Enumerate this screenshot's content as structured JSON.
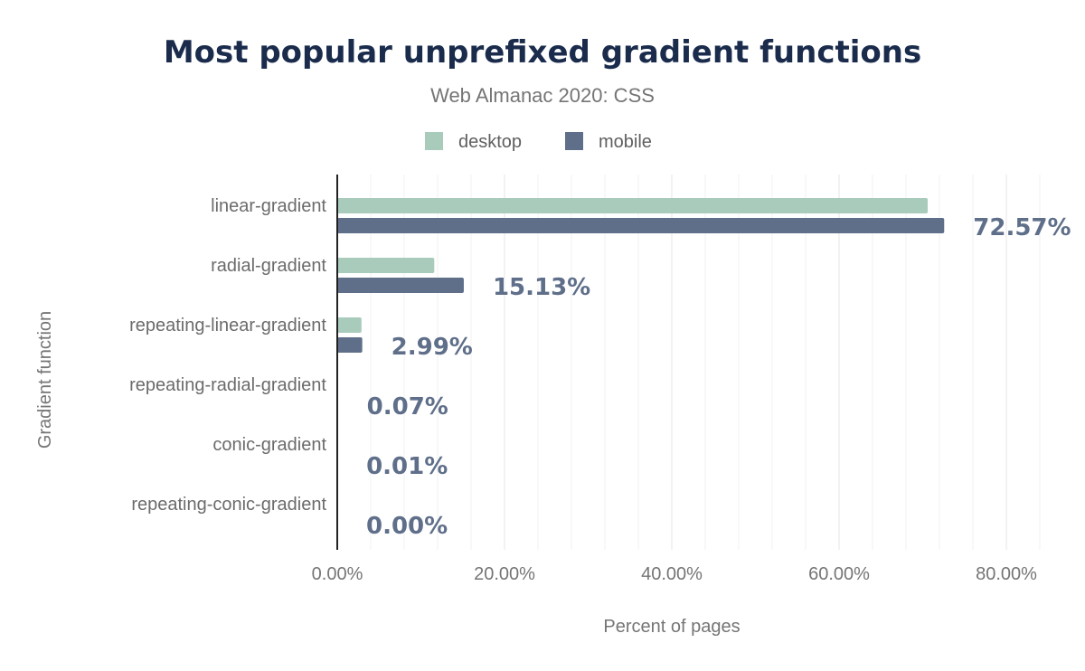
{
  "chart_data": {
    "type": "bar",
    "orientation": "horizontal",
    "title": "Most popular unprefixed gradient functions",
    "subtitle": "Web Almanac 2020: CSS",
    "xlabel": "Percent of pages",
    "ylabel": "Gradient function",
    "categories": [
      "linear-gradient",
      "radial-gradient",
      "repeating-linear-gradient",
      "repeating-radial-gradient",
      "conic-gradient",
      "repeating-conic-gradient"
    ],
    "series": [
      {
        "name": "desktop",
        "color": "#a8cbbc",
        "values": [
          70.6,
          11.6,
          2.9,
          0.06,
          0.01,
          0.0
        ]
      },
      {
        "name": "mobile",
        "color": "#5f6f8a",
        "values": [
          72.57,
          15.13,
          2.99,
          0.07,
          0.01,
          0.0
        ]
      }
    ],
    "data_labels": [
      "72.57%",
      "15.13%",
      "2.99%",
      "0.07%",
      "0.01%",
      "0.00%"
    ],
    "xlim": [
      0,
      85
    ],
    "xticks": [
      0,
      20,
      40,
      60,
      80
    ],
    "xtick_labels": [
      "0.00%",
      "20.00%",
      "40.00%",
      "60.00%",
      "80.00%"
    ],
    "grid": true,
    "legend_position": "top"
  }
}
